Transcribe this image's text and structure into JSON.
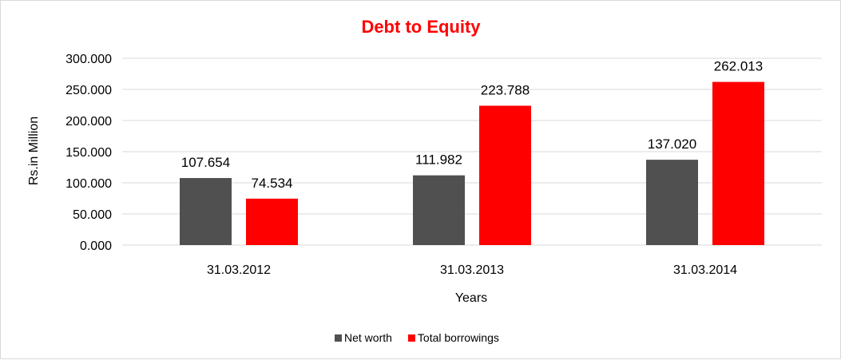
{
  "chart_data": {
    "type": "bar",
    "title": "Debt to Equity",
    "xlabel": "Years",
    "ylabel": "Rs.in Million",
    "categories": [
      "31.03.2012",
      "31.03.2013",
      "31.03.2014"
    ],
    "series": [
      {
        "name": "Net worth",
        "color": "#505050",
        "values": [
          107.654,
          111.982,
          137.02
        ],
        "labels": [
          "107.654",
          "111.982",
          "137.020"
        ]
      },
      {
        "name": "Total borrowings",
        "color": "#ff0000",
        "values": [
          74.534,
          223.788,
          262.013
        ],
        "labels": [
          "74.534",
          "223.788",
          "262.013"
        ]
      }
    ],
    "ylim": [
      0,
      300
    ],
    "yticks": [
      "0.000",
      "50.000",
      "100.000",
      "150.000",
      "200.000",
      "250.000",
      "300.000"
    ],
    "ytick_values": [
      0,
      50,
      100,
      150,
      200,
      250,
      300
    ],
    "grid": true,
    "legend": "bottom",
    "title_color": "#ff0000",
    "gridline_color": "#d9d9d9"
  }
}
